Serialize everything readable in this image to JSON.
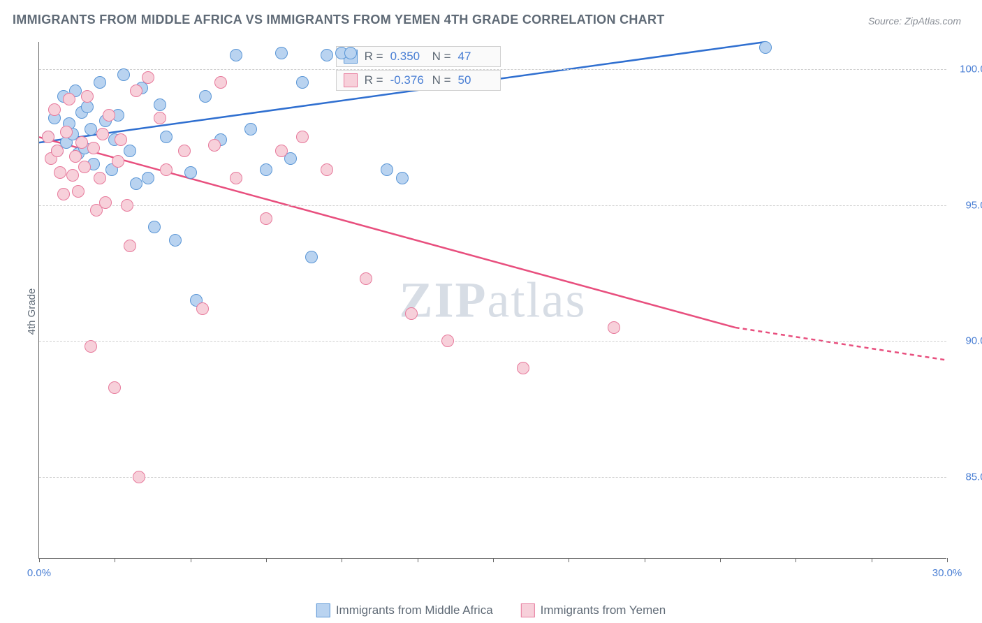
{
  "title": "IMMIGRANTS FROM MIDDLE AFRICA VS IMMIGRANTS FROM YEMEN 4TH GRADE CORRELATION CHART",
  "source": "Source: ZipAtlas.com",
  "ylabel": "4th Grade",
  "watermark_bold": "ZIP",
  "watermark_light": "atlas",
  "chart": {
    "type": "scatter",
    "background_color": "#ffffff",
    "grid_color": "#cfcfcf",
    "axis_color": "#666666",
    "xlim": [
      0,
      30
    ],
    "ylim": [
      82,
      101
    ],
    "x_ticks": [
      0,
      2.5,
      5,
      7.5,
      10,
      12.5,
      15,
      17.5,
      20,
      22.5,
      25,
      27.5,
      30
    ],
    "x_tick_labels": {
      "0": "0.0%",
      "30": "30.0%"
    },
    "y_ticks": [
      85,
      90,
      95,
      100
    ],
    "y_tick_labels": [
      "85.0%",
      "90.0%",
      "95.0%",
      "100.0%"
    ],
    "series": [
      {
        "name": "Immigrants from Middle Africa",
        "color_fill": "#b9d3f0",
        "color_stroke": "#5a96d6",
        "trend_color": "#2f6fd0",
        "R": "0.350",
        "N": "47",
        "trend": {
          "x1": 0,
          "y1": 97.3,
          "x2": 24,
          "y2": 101
        },
        "points": [
          [
            0.3,
            97.5
          ],
          [
            0.5,
            98.2
          ],
          [
            0.6,
            97.0
          ],
          [
            0.8,
            99.0
          ],
          [
            0.9,
            97.3
          ],
          [
            1.0,
            98.0
          ],
          [
            1.1,
            97.6
          ],
          [
            1.2,
            99.2
          ],
          [
            1.3,
            96.9
          ],
          [
            1.4,
            98.4
          ],
          [
            1.5,
            97.1
          ],
          [
            1.6,
            98.6
          ],
          [
            1.7,
            97.8
          ],
          [
            1.8,
            96.5
          ],
          [
            2.0,
            99.5
          ],
          [
            2.2,
            98.1
          ],
          [
            2.4,
            96.3
          ],
          [
            2.5,
            97.4
          ],
          [
            2.6,
            98.3
          ],
          [
            2.8,
            99.8
          ],
          [
            3.0,
            97.0
          ],
          [
            3.2,
            95.8
          ],
          [
            3.4,
            99.3
          ],
          [
            3.6,
            96.0
          ],
          [
            3.8,
            94.2
          ],
          [
            4.0,
            98.7
          ],
          [
            4.2,
            97.5
          ],
          [
            4.5,
            93.7
          ],
          [
            5.0,
            96.2
          ],
          [
            5.2,
            91.5
          ],
          [
            5.5,
            99.0
          ],
          [
            6.0,
            97.4
          ],
          [
            6.5,
            100.5
          ],
          [
            7.0,
            97.8
          ],
          [
            7.5,
            96.3
          ],
          [
            8.0,
            100.6
          ],
          [
            8.3,
            96.7
          ],
          [
            8.7,
            99.5
          ],
          [
            9.0,
            93.1
          ],
          [
            9.5,
            100.5
          ],
          [
            10.0,
            100.6
          ],
          [
            10.3,
            100.6
          ],
          [
            11.5,
            96.3
          ],
          [
            12.0,
            96.0
          ],
          [
            24.0,
            100.8
          ]
        ]
      },
      {
        "name": "Immigrants from Yemen",
        "color_fill": "#f7d0da",
        "color_stroke": "#e77a9c",
        "trend_color": "#e84f7e",
        "R": "-0.376",
        "N": "50",
        "trend": {
          "x1": 0,
          "y1": 97.5,
          "x2": 23,
          "y2": 90.5
        },
        "trend_dashed_ext": {
          "x1": 23,
          "y1": 90.5,
          "x2": 30,
          "y2": 89.3
        },
        "points": [
          [
            0.3,
            97.5
          ],
          [
            0.4,
            96.7
          ],
          [
            0.5,
            98.5
          ],
          [
            0.6,
            97.0
          ],
          [
            0.7,
            96.2
          ],
          [
            0.8,
            95.4
          ],
          [
            0.9,
            97.7
          ],
          [
            1.0,
            98.9
          ],
          [
            1.1,
            96.1
          ],
          [
            1.2,
            96.8
          ],
          [
            1.3,
            95.5
          ],
          [
            1.4,
            97.3
          ],
          [
            1.5,
            96.4
          ],
          [
            1.6,
            99.0
          ],
          [
            1.7,
            89.8
          ],
          [
            1.8,
            97.1
          ],
          [
            1.9,
            94.8
          ],
          [
            2.0,
            96.0
          ],
          [
            2.1,
            97.6
          ],
          [
            2.2,
            95.1
          ],
          [
            2.3,
            98.3
          ],
          [
            2.5,
            88.3
          ],
          [
            2.6,
            96.6
          ],
          [
            2.7,
            97.4
          ],
          [
            2.9,
            95.0
          ],
          [
            3.0,
            93.5
          ],
          [
            3.2,
            99.2
          ],
          [
            3.3,
            85.0
          ],
          [
            3.6,
            99.7
          ],
          [
            4.0,
            98.2
          ],
          [
            4.2,
            96.3
          ],
          [
            4.8,
            97.0
          ],
          [
            5.4,
            91.2
          ],
          [
            5.8,
            97.2
          ],
          [
            6.0,
            99.5
          ],
          [
            6.5,
            96.0
          ],
          [
            7.5,
            94.5
          ],
          [
            8.0,
            97.0
          ],
          [
            8.7,
            97.5
          ],
          [
            9.5,
            96.3
          ],
          [
            10.8,
            92.3
          ],
          [
            12.3,
            91.0
          ],
          [
            13.5,
            90.0
          ],
          [
            16.0,
            89.0
          ],
          [
            19.0,
            90.5
          ]
        ]
      }
    ]
  }
}
